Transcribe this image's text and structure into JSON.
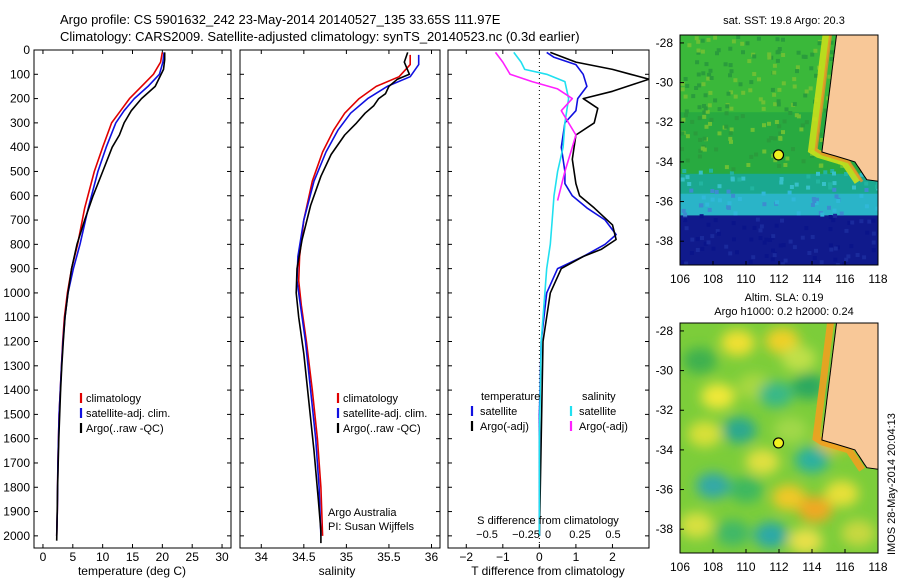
{
  "header": {
    "line1": "Argo profile: CS 5901632_242 23-May-2014 20140527_135 33.65S 111.97E",
    "line2": "Climatology: CARS2009. Satellite-adjusted climatology: synTS_20140523.nc (0.3d earlier)"
  },
  "colors": {
    "climatology": "#e00000",
    "satellite": "#1010e0",
    "argo": "#000000",
    "salinity_satellite": "#20e0f0",
    "salinity_argo": "#ff20ff",
    "land": "#f8c898"
  },
  "credits": {
    "line1": "Argo Australia",
    "line2": "PI: Susan Wijffels"
  },
  "stamp": "IMOS 28-May-2014 20:04:13",
  "chart_data": [
    {
      "type": "line",
      "panel": "temperature",
      "xlabel": "temperature (deg C)",
      "ylabel": "",
      "xlim": [
        -1.5,
        31.5
      ],
      "ylim": [
        2050,
        0
      ],
      "y_inverted": true,
      "xticks": [
        0,
        5,
        10,
        15,
        20,
        25,
        30
      ],
      "yticks": [
        0,
        100,
        200,
        300,
        400,
        500,
        600,
        700,
        800,
        900,
        1000,
        1100,
        1200,
        1300,
        1400,
        1500,
        1600,
        1700,
        1800,
        1900,
        2000
      ],
      "legend": [
        "climatology",
        "satellite-adj. clim.",
        "Argo(..raw -QC)"
      ],
      "legend_position": "lower-right",
      "series": [
        {
          "name": "climatology",
          "color": "#e00000",
          "x": [
            20.0,
            19.7,
            18.5,
            16.5,
            14.5,
            13.0,
            11.5,
            10.0,
            8.6,
            7.0,
            5.8,
            4.8,
            4.1,
            3.6,
            3.3,
            3.1,
            2.9,
            2.7,
            2.5,
            2.4,
            2.3
          ],
          "y": [
            10,
            50,
            100,
            150,
            200,
            250,
            300,
            400,
            500,
            650,
            800,
            900,
            1000,
            1100,
            1200,
            1300,
            1400,
            1500,
            1700,
            1900,
            2000
          ]
        },
        {
          "name": "satellite-adj. clim.",
          "color": "#1010e0",
          "x": [
            20.3,
            20.1,
            19.5,
            17.6,
            15.3,
            13.6,
            12.2,
            10.6,
            9.2,
            7.6,
            6.2,
            5.1,
            4.2,
            3.7,
            3.35,
            3.1,
            2.9,
            2.7,
            2.5,
            2.4,
            2.3
          ],
          "y": [
            10,
            50,
            100,
            150,
            200,
            250,
            300,
            400,
            500,
            650,
            800,
            900,
            1000,
            1100,
            1200,
            1300,
            1400,
            1500,
            1700,
            1900,
            2000
          ]
        },
        {
          "name": "Argo(..raw -QC)",
          "color": "#000000",
          "x": [
            20.4,
            20.4,
            20.2,
            18.8,
            16.5,
            14.8,
            13.6,
            12.8,
            11.6,
            10.0,
            8.4,
            7.0,
            5.7,
            4.8,
            4.2,
            3.7,
            3.4,
            3.15,
            2.95,
            2.8,
            2.65,
            2.45,
            2.35,
            2.3
          ],
          "y": [
            10,
            40,
            80,
            150,
            200,
            250,
            300,
            350,
            400,
            500,
            600,
            700,
            800,
            900,
            1000,
            1100,
            1200,
            1300,
            1400,
            1500,
            1600,
            1800,
            1950,
            2020
          ]
        }
      ]
    },
    {
      "type": "line",
      "panel": "salinity",
      "xlabel": "salinity",
      "xlim": [
        33.75,
        36.1
      ],
      "ylim": [
        2050,
        0
      ],
      "y_inverted": true,
      "xticks": [
        34,
        34.5,
        35,
        35.5,
        36
      ],
      "xtick_labels": [
        "34",
        "34.5",
        "35",
        "35.5",
        "36"
      ],
      "legend": [
        "climatology",
        "satellite-adj. clim.",
        "Argo(..raw -QC)"
      ],
      "legend_position": "lower-right",
      "series": [
        {
          "name": "climatology",
          "color": "#e00000",
          "x": [
            35.75,
            35.75,
            35.62,
            35.35,
            35.15,
            34.98,
            34.85,
            34.72,
            34.6,
            34.5,
            34.45,
            34.44,
            34.47,
            34.53,
            34.6,
            34.66,
            34.7,
            34.72
          ],
          "y": [
            20,
            60,
            110,
            150,
            200,
            260,
            330,
            420,
            540,
            700,
            850,
            950,
            1050,
            1200,
            1400,
            1600,
            1800,
            2000
          ]
        },
        {
          "name": "satellite-adj. clim.",
          "color": "#1010e0",
          "x": [
            35.85,
            35.85,
            35.75,
            35.48,
            35.25,
            35.05,
            34.9,
            34.76,
            34.62,
            34.5,
            34.43,
            34.42,
            34.46,
            34.52,
            34.58,
            34.64,
            34.68,
            34.7
          ],
          "y": [
            20,
            60,
            110,
            150,
            200,
            260,
            330,
            420,
            540,
            700,
            850,
            950,
            1050,
            1200,
            1400,
            1600,
            1800,
            2000
          ]
        },
        {
          "name": "Argo(..raw -QC)",
          "color": "#000000",
          "x": [
            35.72,
            35.68,
            35.74,
            35.6,
            35.5,
            35.46,
            35.38,
            35.32,
            35.22,
            35.12,
            34.98,
            34.82,
            34.7,
            34.58,
            34.48,
            34.42,
            34.41,
            34.44,
            34.5,
            34.56,
            34.62,
            34.67,
            34.7,
            34.7
          ],
          "y": [
            10,
            50,
            100,
            120,
            150,
            180,
            200,
            230,
            260,
            300,
            350,
            430,
            520,
            640,
            780,
            900,
            1000,
            1100,
            1250,
            1450,
            1650,
            1850,
            1980,
            2030
          ]
        }
      ]
    },
    {
      "type": "line",
      "panel": "difference",
      "xlabel": "T difference from climatology",
      "xlabel_top": "S difference from climatology",
      "xlim": [
        -2.5,
        3.0
      ],
      "ylim": [
        2050,
        0
      ],
      "y_inverted": true,
      "xticks": [
        -2,
        -1,
        0,
        1,
        2
      ],
      "xtick_labels": [
        "−2",
        "−1",
        "0",
        "1",
        "2"
      ],
      "top_xtick_labels": [
        "−0.5",
        "−0.25",
        "0",
        "0.25",
        "0.5"
      ],
      "legend_groups": [
        {
          "title": "temperature",
          "items": [
            "satellite",
            "Argo(-adj)"
          ]
        },
        {
          "title": "salinity",
          "items": [
            "satellite",
            "Argo(-adj)"
          ]
        }
      ],
      "series": [
        {
          "name": "satellite",
          "group": "temperature",
          "color": "#1010e0",
          "x": [
            0.2,
            0.4,
            1.0,
            1.2,
            1.3,
            1.05,
            1.0,
            0.7,
            0.6,
            0.7,
            0.7,
            0.9,
            1.3,
            1.8,
            2.1,
            1.8,
            1.2,
            0.5,
            0.2,
            0.05,
            0.0,
            0.0,
            0.0
          ],
          "y": [
            10,
            30,
            60,
            100,
            150,
            200,
            250,
            300,
            400,
            500,
            550,
            600,
            650,
            700,
            760,
            800,
            850,
            900,
            1000,
            1200,
            1500,
            1800,
            2000
          ]
        },
        {
          "name": "Argo(-adj)",
          "group": "temperature",
          "color": "#000000",
          "x": [
            0.3,
            1.0,
            2.0,
            2.5,
            3.0,
            2.6,
            2.0,
            1.2,
            1.6,
            1.5,
            1.0,
            0.9,
            1.0,
            1.1,
            1.5,
            2.0,
            2.1,
            1.7,
            1.2,
            0.6,
            0.3,
            0.1,
            0.05,
            0.0
          ],
          "y": [
            10,
            50,
            80,
            100,
            120,
            140,
            170,
            200,
            240,
            300,
            350,
            450,
            550,
            600,
            650,
            720,
            780,
            820,
            850,
            900,
            1000,
            1200,
            1600,
            2000
          ]
        },
        {
          "name": "satellite",
          "group": "salinity",
          "color": "#20e0f0",
          "x": [
            -0.7,
            -0.5,
            -0.4,
            0.2,
            0.7,
            0.8,
            0.7,
            0.65,
            0.5,
            0.4,
            0.35,
            0.3,
            0.2,
            0.05,
            0.0,
            0.0
          ],
          "y": [
            10,
            50,
            80,
            100,
            130,
            200,
            300,
            400,
            500,
            600,
            700,
            800,
            900,
            1200,
            1600,
            2000
          ]
        },
        {
          "name": "Argo(-adj)",
          "group": "salinity",
          "color": "#ff20ff",
          "x": [
            -1.2,
            -1.0,
            -0.8,
            -0.2,
            0.5,
            0.9,
            0.6,
            0.8,
            1.0,
            0.9,
            0.7,
            0.5
          ],
          "y": [
            10,
            50,
            100,
            130,
            160,
            200,
            250,
            300,
            350,
            400,
            500,
            620
          ]
        }
      ]
    },
    {
      "type": "heatmap",
      "panel": "SST map",
      "title": "sat. SST: 19.8 Argo: 20.3",
      "xlim": [
        106,
        118
      ],
      "ylim": [
        -39.2,
        -27.6
      ],
      "xticks": [
        106,
        108,
        110,
        112,
        114,
        116,
        118
      ],
      "yticks": [
        -28,
        -30,
        -32,
        -34,
        -36,
        -38
      ],
      "marker": {
        "lon": 111.97,
        "lat": -33.65
      }
    },
    {
      "type": "heatmap",
      "panel": "SLA map",
      "title_line1": "Altim. SLA: 0.19",
      "title_line2": "Argo h1000: 0.2 h2000: 0.24",
      "xlim": [
        106,
        118
      ],
      "ylim": [
        -39.2,
        -27.6
      ],
      "xticks": [
        106,
        108,
        110,
        112,
        114,
        116,
        118
      ],
      "yticks": [
        -28,
        -30,
        -32,
        -34,
        -36,
        -38
      ],
      "marker": {
        "lon": 111.97,
        "lat": -33.65
      }
    }
  ]
}
